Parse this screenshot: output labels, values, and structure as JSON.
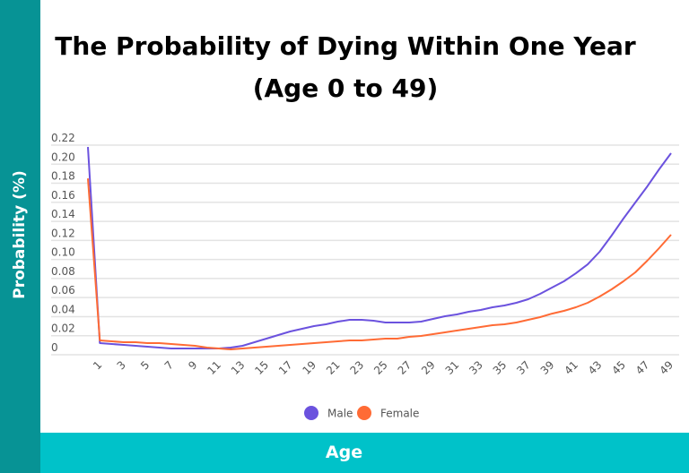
{
  "chart_data": {
    "type": "line",
    "title": "The Probability of Dying Within One Year (Age 0 to 49)",
    "xlabel": "Age",
    "ylabel": "Probability (%)",
    "x": [
      0,
      1,
      2,
      3,
      4,
      5,
      6,
      7,
      8,
      9,
      10,
      11,
      12,
      13,
      14,
      15,
      16,
      17,
      18,
      19,
      20,
      21,
      22,
      23,
      24,
      25,
      26,
      27,
      28,
      29,
      30,
      31,
      32,
      33,
      34,
      35,
      36,
      37,
      38,
      39,
      40,
      41,
      42,
      43,
      44,
      45,
      46,
      47,
      48,
      49
    ],
    "xtick_labels": [
      "1",
      "3",
      "5",
      "7",
      "9",
      "11",
      "13",
      "15",
      "17",
      "19",
      "21",
      "23",
      "25",
      "27",
      "29",
      "31",
      "33",
      "35",
      "37",
      "39",
      "41",
      "43",
      "45",
      "47",
      "49"
    ],
    "ytick_labels": [
      "0",
      "0.02",
      "0.04",
      "0.06",
      "0.08",
      "0.10",
      "0.12",
      "0.14",
      "0.16",
      "0.18",
      "0.20",
      "0.22"
    ],
    "ylim": [
      0,
      0.22
    ],
    "grid": true,
    "legend_position": "bottom",
    "series": [
      {
        "name": "Male",
        "color": "#6b52de",
        "values": [
          0.218,
          0.0122,
          0.0113,
          0.0103,
          0.0094,
          0.0085,
          0.0075,
          0.0066,
          0.0066,
          0.0066,
          0.0066,
          0.0066,
          0.0075,
          0.0094,
          0.0132,
          0.0169,
          0.0207,
          0.0244,
          0.0273,
          0.0301,
          0.032,
          0.0348,
          0.0367,
          0.0367,
          0.0357,
          0.0338,
          0.0338,
          0.0338,
          0.0348,
          0.0376,
          0.0404,
          0.0423,
          0.0451,
          0.047,
          0.0498,
          0.0517,
          0.0545,
          0.0583,
          0.0639,
          0.0705,
          0.0771,
          0.0855,
          0.0949,
          0.1081,
          0.125,
          0.1429,
          0.1598,
          0.1767,
          0.1946,
          0.2115
        ]
      },
      {
        "name": "Female",
        "color": "#ff6b35",
        "values": [
          0.185,
          0.015,
          0.0141,
          0.0132,
          0.0132,
          0.0122,
          0.0122,
          0.0113,
          0.0103,
          0.0094,
          0.0075,
          0.0066,
          0.0056,
          0.0066,
          0.0075,
          0.0085,
          0.0094,
          0.0103,
          0.0113,
          0.0122,
          0.0132,
          0.0141,
          0.015,
          0.015,
          0.016,
          0.0169,
          0.0169,
          0.0188,
          0.0197,
          0.0216,
          0.0235,
          0.0254,
          0.0273,
          0.0291,
          0.031,
          0.032,
          0.0338,
          0.0367,
          0.0395,
          0.0432,
          0.0461,
          0.0498,
          0.0545,
          0.0611,
          0.0686,
          0.0771,
          0.0865,
          0.0987,
          0.1119,
          0.126
        ]
      }
    ]
  }
}
